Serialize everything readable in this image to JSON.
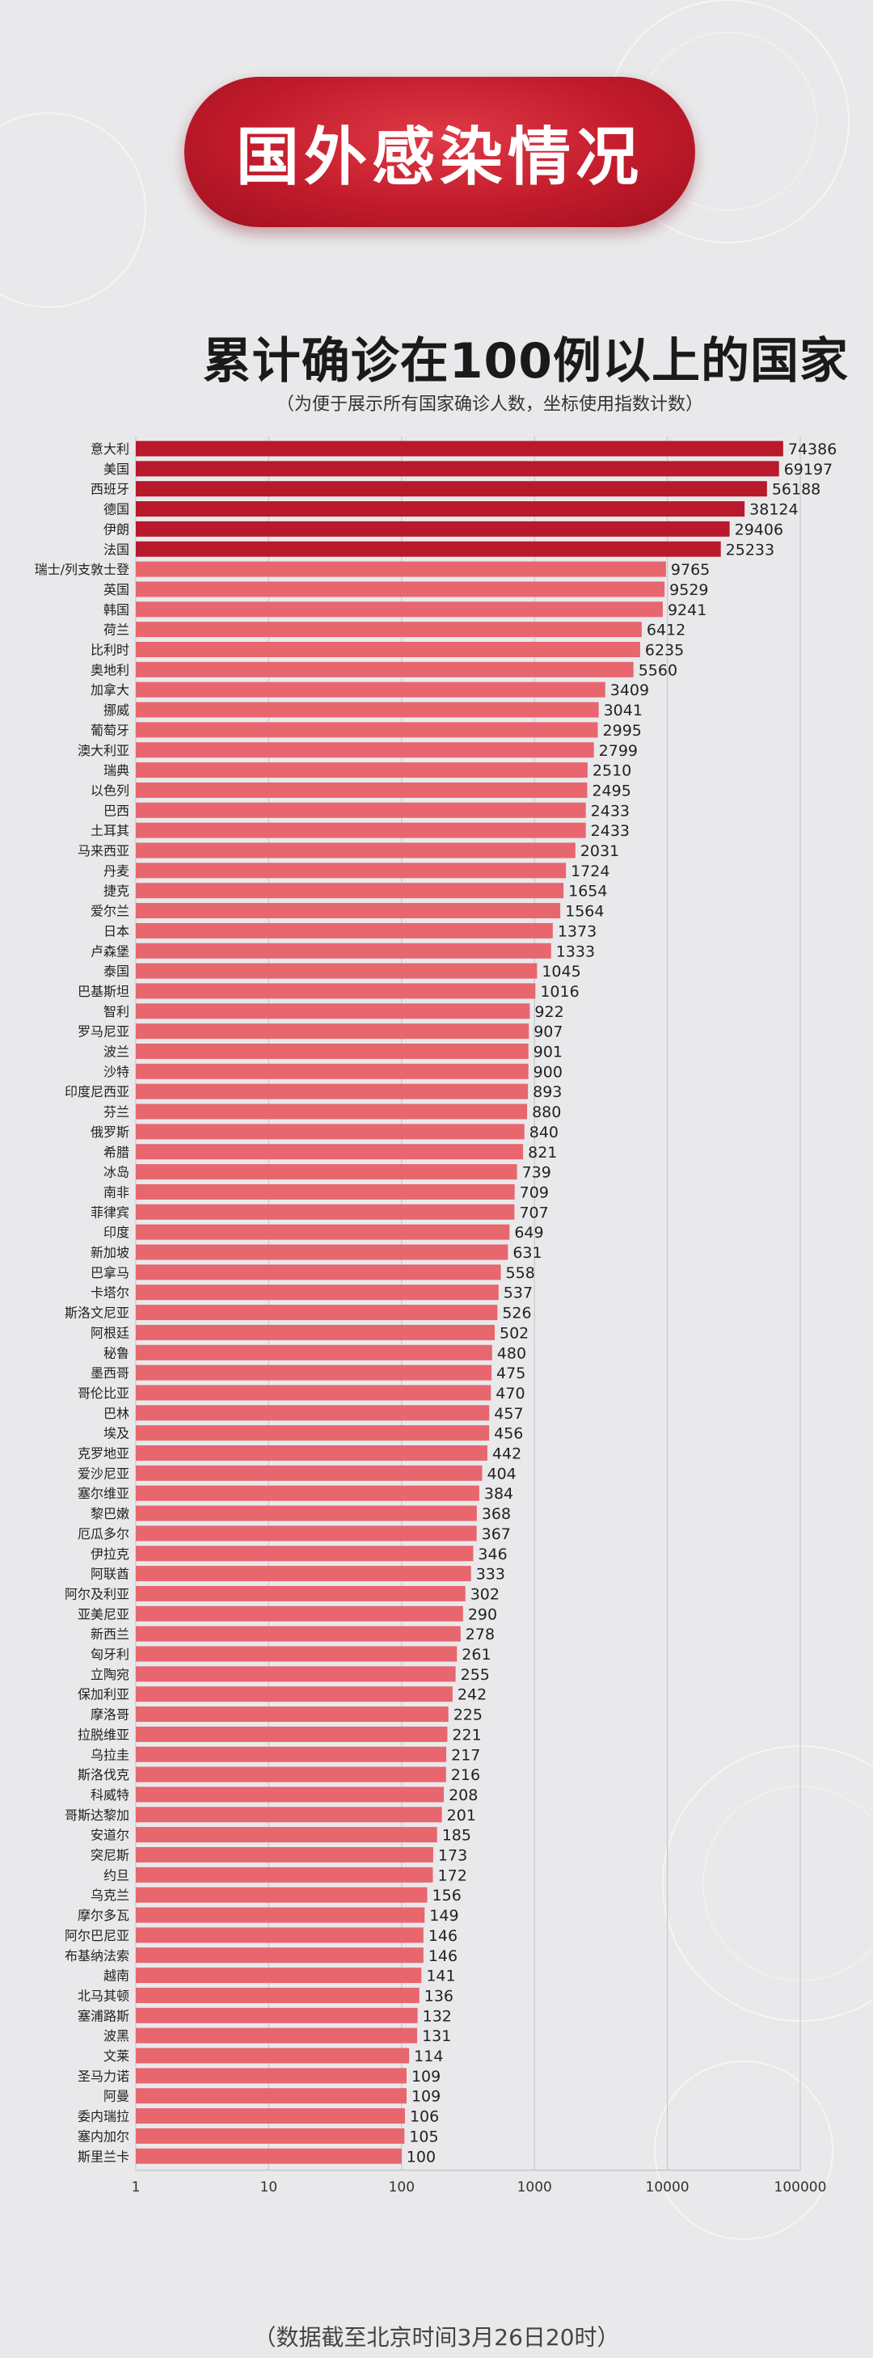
{
  "header": {
    "title": "国外感染情况"
  },
  "chart_data": {
    "type": "bar",
    "orientation": "horizontal",
    "title": "累计确诊在100例以上的国家",
    "subtitle": "（为便于展示所有国家确诊人数，坐标使用指数计数）",
    "x_scale": "log",
    "xlim": [
      1,
      100000
    ],
    "x_ticks": [
      "1",
      "10",
      "100",
      "1000",
      "10000",
      "100000"
    ],
    "grid": true,
    "colors": {
      "top": "#b8192b",
      "rest": "#e8666e"
    },
    "categories": [
      "意大利",
      "美国",
      "西班牙",
      "德国",
      "伊朗",
      "法国",
      "瑞士/列支敦士登",
      "英国",
      "韩国",
      "荷兰",
      "比利时",
      "奥地利",
      "加拿大",
      "挪威",
      "葡萄牙",
      "澳大利亚",
      "瑞典",
      "以色列",
      "巴西",
      "土耳其",
      "马来西亚",
      "丹麦",
      "捷克",
      "爱尔兰",
      "日本",
      "卢森堡",
      "泰国",
      "巴基斯坦",
      "智利",
      "罗马尼亚",
      "波兰",
      "沙特",
      "印度尼西亚",
      "芬兰",
      "俄罗斯",
      "希腊",
      "冰岛",
      "南非",
      "菲律宾",
      "印度",
      "新加坡",
      "巴拿马",
      "卡塔尔",
      "斯洛文尼亚",
      "阿根廷",
      "秘鲁",
      "墨西哥",
      "哥伦比亚",
      "巴林",
      "埃及",
      "克罗地亚",
      "爱沙尼亚",
      "塞尔维亚",
      "黎巴嫩",
      "厄瓜多尔",
      "伊拉克",
      "阿联酋",
      "阿尔及利亚",
      "亚美尼亚",
      "新西兰",
      "匈牙利",
      "立陶宛",
      "保加利亚",
      "摩洛哥",
      "拉脱维亚",
      "乌拉圭",
      "斯洛伐克",
      "科威特",
      "哥斯达黎加",
      "安道尔",
      "突尼斯",
      "约旦",
      "乌克兰",
      "摩尔多瓦",
      "阿尔巴尼亚",
      "布基纳法索",
      "越南",
      "北马其顿",
      "塞浦路斯",
      "波黑",
      "文莱",
      "圣马力诺",
      "阿曼",
      "委内瑞拉",
      "塞内加尔",
      "斯里兰卡"
    ],
    "values": [
      74386,
      69197,
      56188,
      38124,
      29406,
      25233,
      9765,
      9529,
      9241,
      6412,
      6235,
      5560,
      3409,
      3041,
      2995,
      2799,
      2510,
      2495,
      2433,
      2433,
      2031,
      1724,
      1654,
      1564,
      1373,
      1333,
      1045,
      1016,
      922,
      907,
      901,
      900,
      893,
      880,
      840,
      821,
      739,
      709,
      707,
      649,
      631,
      558,
      537,
      526,
      502,
      480,
      475,
      470,
      457,
      456,
      442,
      404,
      384,
      368,
      367,
      346,
      333,
      302,
      290,
      278,
      261,
      255,
      242,
      225,
      221,
      217,
      216,
      208,
      201,
      185,
      173,
      172,
      156,
      149,
      146,
      146,
      141,
      136,
      132,
      131,
      114,
      109,
      109,
      106,
      105,
      100
    ],
    "value_labels": [
      "74386",
      "69197",
      "56188",
      "38124",
      "29406",
      "25233",
      "9765",
      "9529",
      "9241",
      "6412",
      "6235",
      "5560",
      "3409",
      "3041",
      "2995",
      "2799",
      "2510",
      "2495",
      "2433",
      "2433",
      "2031",
      "1724",
      "1654",
      "1564",
      "1373",
      "1333",
      "1045",
      "1016",
      "922",
      "907",
      "901",
      "900",
      "893",
      "880",
      "840",
      "821",
      "739",
      "709",
      "707",
      "649",
      "631",
      "558",
      "537",
      "526",
      "502",
      "480",
      "475",
      "470",
      "457",
      "456",
      "442",
      "404",
      "384",
      "368",
      "367",
      "346",
      "333",
      "302",
      "290",
      "278",
      "261",
      "255",
      "242",
      "225",
      "221",
      "217",
      "216",
      "208",
      "201",
      "185",
      "173",
      "172",
      "156",
      "149",
      "146",
      "146",
      "141",
      "136",
      "132",
      "131",
      "114",
      "109",
      "109",
      "106",
      "105",
      "100"
    ]
  },
  "footer": {
    "note": "（数据截至北京时间3月26日20时）"
  }
}
